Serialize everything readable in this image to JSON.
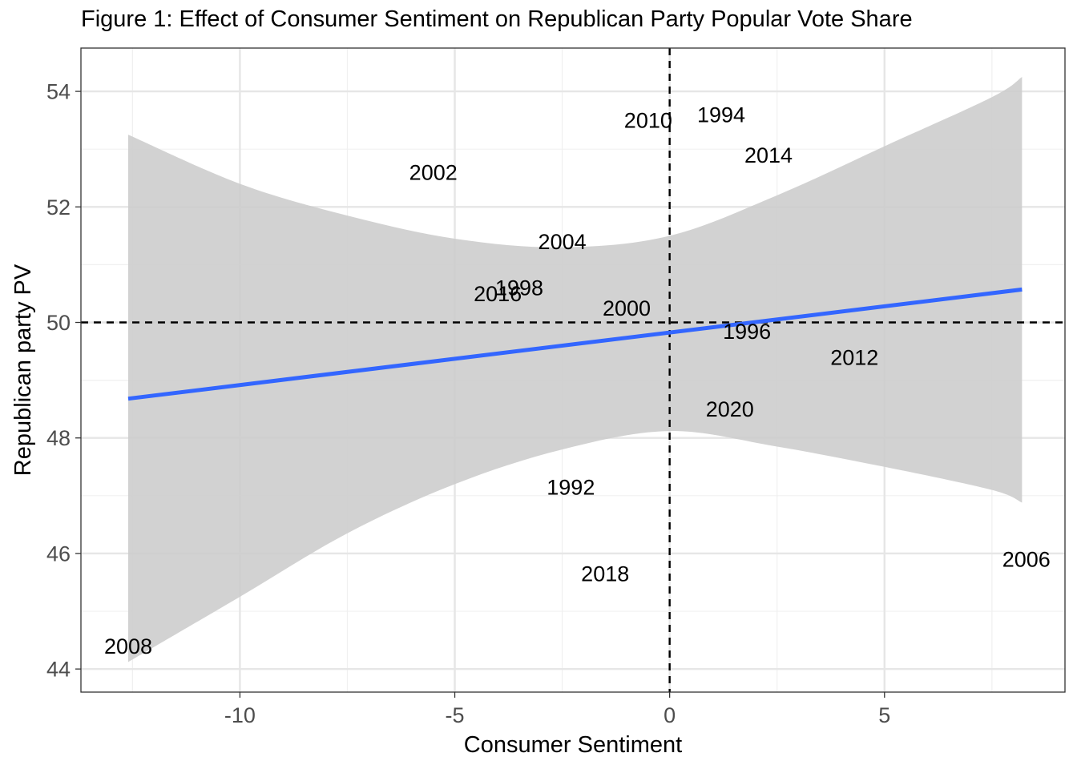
{
  "chart_data": {
    "type": "scatter",
    "title": "Figure 1: Effect of Consumer Sentiment on Republican Party Popular Vote Share",
    "xlabel": "Consumer Sentiment",
    "ylabel": "Republican party PV",
    "xlim": [
      -13.7,
      9.2
    ],
    "ylim": [
      43.6,
      54.75
    ],
    "x_ticks": [
      -10,
      -5,
      0,
      5
    ],
    "x_tick_labels": [
      "-10",
      "-5",
      "0",
      "5"
    ],
    "y_ticks": [
      44,
      46,
      48,
      50,
      52,
      54
    ],
    "y_tick_labels": [
      "44",
      "46",
      "48",
      "50",
      "52",
      "54"
    ],
    "grid": true,
    "reference_lines": {
      "x": 0,
      "y": 50,
      "style": "dashed"
    },
    "points": [
      {
        "label": "2008",
        "x": -12.6,
        "y": 44.4
      },
      {
        "label": "2002",
        "x": -5.5,
        "y": 52.6
      },
      {
        "label": "2016",
        "x": -4.0,
        "y": 50.5
      },
      {
        "label": "1998",
        "x": -3.5,
        "y": 50.6
      },
      {
        "label": "2004",
        "x": -2.5,
        "y": 51.4
      },
      {
        "label": "1992",
        "x": -2.3,
        "y": 47.15
      },
      {
        "label": "2018",
        "x": -1.5,
        "y": 45.65
      },
      {
        "label": "2000",
        "x": -1.0,
        "y": 50.25
      },
      {
        "label": "2010",
        "x": -0.5,
        "y": 53.5
      },
      {
        "label": "1994",
        "x": 1.2,
        "y": 53.6
      },
      {
        "label": "1996",
        "x": 1.8,
        "y": 49.85
      },
      {
        "label": "2020",
        "x": 1.4,
        "y": 48.5
      },
      {
        "label": "2014",
        "x": 2.3,
        "y": 52.9
      },
      {
        "label": "2012",
        "x": 4.3,
        "y": 49.4
      },
      {
        "label": "2006",
        "x": 8.3,
        "y": 45.9
      }
    ],
    "regression_line": {
      "color": "#3366FF",
      "x": [
        -12.6,
        8.2
      ],
      "y": [
        48.68,
        50.57
      ]
    },
    "confidence_band": {
      "color": "#cccccc",
      "x": [
        -12.6,
        -10,
        -7.5,
        -5,
        -2.5,
        0,
        2.5,
        5,
        7.5,
        8.2
      ],
      "upper": [
        53.25,
        52.4,
        51.85,
        51.45,
        51.3,
        51.5,
        52.2,
        53.05,
        53.9,
        54.25
      ],
      "lower": [
        44.12,
        45.25,
        46.35,
        47.2,
        47.8,
        48.12,
        47.85,
        47.5,
        47.1,
        46.88
      ]
    }
  }
}
